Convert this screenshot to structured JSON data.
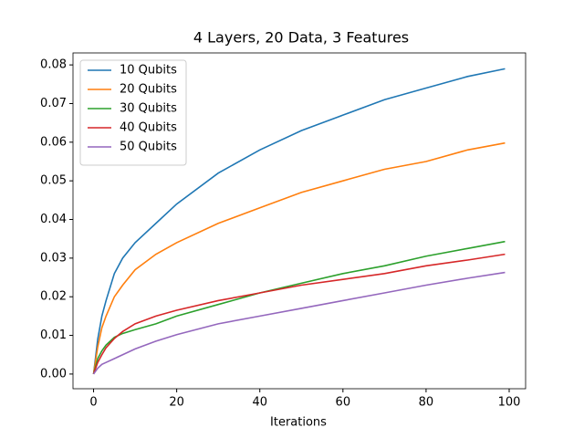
{
  "chart_data": {
    "type": "line",
    "title": "4 Layers, 20 Data, 3 Features",
    "x_label": "Iterations",
    "x": [
      0,
      1,
      2,
      3,
      5,
      7,
      10,
      15,
      20,
      30,
      40,
      50,
      60,
      70,
      80,
      90,
      99
    ],
    "series": [
      {
        "name": "10 Qubits",
        "color": "#1f77b4",
        "values": [
          0,
          0.009,
          0.015,
          0.019,
          0.026,
          0.03,
          0.034,
          0.039,
          0.044,
          0.052,
          0.058,
          0.063,
          0.067,
          0.071,
          0.074,
          0.077,
          0.079
        ]
      },
      {
        "name": "20 Qubits",
        "color": "#ff7f0e",
        "values": [
          0,
          0.007,
          0.012,
          0.015,
          0.02,
          0.023,
          0.027,
          0.031,
          0.034,
          0.039,
          0.043,
          0.047,
          0.05,
          0.053,
          0.055,
          0.058,
          0.0598
        ]
      },
      {
        "name": "30 Qubits",
        "color": "#2ca02c",
        "values": [
          0,
          0.004,
          0.006,
          0.0075,
          0.0095,
          0.0105,
          0.0115,
          0.013,
          0.015,
          0.018,
          0.021,
          0.0235,
          0.026,
          0.028,
          0.0305,
          0.0325,
          0.0343
        ]
      },
      {
        "name": "40 Qubits",
        "color": "#d62728",
        "values": [
          0,
          0.003,
          0.005,
          0.0068,
          0.0092,
          0.011,
          0.013,
          0.015,
          0.0165,
          0.019,
          0.021,
          0.023,
          0.0245,
          0.026,
          0.028,
          0.0295,
          0.031
        ]
      },
      {
        "name": "50 Qubits",
        "color": "#9467bd",
        "values": [
          0,
          0.0015,
          0.0025,
          0.003,
          0.004,
          0.005,
          0.0065,
          0.0085,
          0.0102,
          0.013,
          0.015,
          0.017,
          0.019,
          0.021,
          0.023,
          0.0248,
          0.0263
        ]
      }
    ],
    "xlim": [
      -4.95,
      103.95
    ],
    "xticks": [
      0,
      20,
      40,
      60,
      80,
      100
    ],
    "ylim": [
      -0.0038,
      0.0831
    ],
    "yticks": [
      {
        "value": 0,
        "label": "0.00"
      },
      0.01,
      0.02,
      0.03,
      0.04,
      0.05,
      0.06,
      0.07,
      0.08
    ],
    "legend": "upper left",
    "grid": false
  }
}
